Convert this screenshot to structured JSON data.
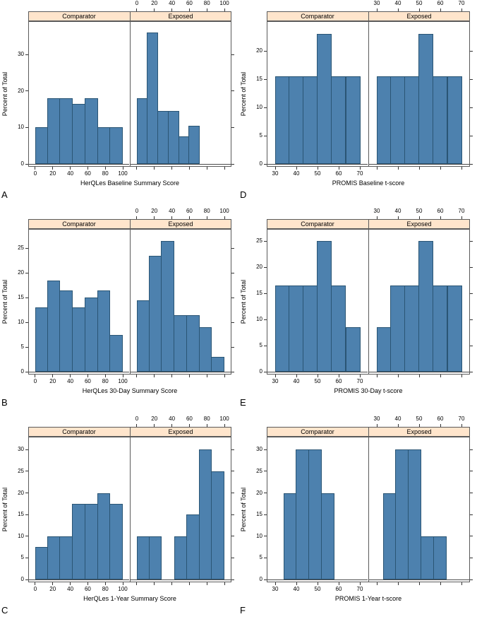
{
  "figure": {
    "background": "#ffffff",
    "bar_fill": "#4d81ae",
    "bar_stroke": "#2a5574",
    "strip_fill": "#ffe5cc",
    "panel_border": "#5a5a5a",
    "axis_color": "#333333",
    "baseline_color": "#4a4a4a"
  },
  "chart_data": [
    {
      "type": "bar",
      "letter": "A",
      "xlabel": "HerQLes Baseline Summary Score",
      "ylabel": "Percent of Total",
      "x_domain": [
        -8,
        108
      ],
      "xticks": [
        0,
        20,
        40,
        60,
        80,
        100
      ],
      "yticks": [
        0,
        10,
        20,
        30
      ],
      "ymax": 38,
      "legend_position": "strip",
      "grid": false,
      "groups": [
        {
          "name": "Comparator",
          "bin_start": 0,
          "bin_width": 14.3,
          "values": [
            10,
            18,
            18,
            16.5,
            18,
            10,
            10
          ]
        },
        {
          "name": "Exposed",
          "bin_start": 0,
          "bin_width": 12,
          "values": [
            18,
            36,
            14.5,
            14.5,
            7.5,
            10.5
          ]
        }
      ]
    },
    {
      "type": "bar",
      "letter": "B",
      "xlabel": "HerQLes 30-Day Summary Score",
      "ylabel": "Percent of Total",
      "x_domain": [
        -8,
        108
      ],
      "xticks": [
        0,
        20,
        40,
        60,
        80,
        100
      ],
      "yticks": [
        0,
        5,
        10,
        15,
        20,
        25
      ],
      "ymax": 28,
      "legend_position": "strip",
      "grid": false,
      "groups": [
        {
          "name": "Comparator",
          "bin_start": 0,
          "bin_width": 14.3,
          "values": [
            13,
            18.5,
            16.5,
            13,
            15,
            16.5,
            7.5
          ]
        },
        {
          "name": "Exposed",
          "bin_start": 0,
          "bin_width": 14.3,
          "values": [
            14.5,
            23.5,
            26.5,
            11.5,
            11.5,
            9,
            3
          ]
        }
      ]
    },
    {
      "type": "bar",
      "letter": "C",
      "xlabel": "HerQLes 1-Year Summary Score",
      "ylabel": "Percent of Total",
      "x_domain": [
        -8,
        108
      ],
      "xticks": [
        0,
        20,
        40,
        60,
        80,
        100
      ],
      "yticks": [
        0,
        5,
        10,
        15,
        20,
        25,
        30
      ],
      "ymax": 32,
      "legend_position": "strip",
      "grid": false,
      "groups": [
        {
          "name": "Comparator",
          "bin_start": 0,
          "bin_width": 14.3,
          "values": [
            7.5,
            10,
            10,
            17.5,
            17.5,
            20,
            17.5
          ]
        },
        {
          "name": "Exposed",
          "bin_start": 0,
          "bin_width": 14.3,
          "values": [
            10,
            10,
            null,
            10,
            15,
            30,
            25
          ]
        }
      ]
    },
    {
      "type": "bar",
      "letter": "D",
      "xlabel": "PROMIS Baseline t-score",
      "ylabel": "Percent of Total",
      "x_domain": [
        26,
        74
      ],
      "xticks": [
        30,
        40,
        50,
        60,
        70
      ],
      "yticks": [
        0,
        5,
        10,
        15,
        20
      ],
      "ymax": 24.5,
      "legend_position": "strip",
      "grid": false,
      "groups": [
        {
          "name": "Comparator",
          "bin_start": 30,
          "bin_width": 6.7,
          "values": [
            15.5,
            15.5,
            15.5,
            23,
            15.5,
            15.5
          ]
        },
        {
          "name": "Exposed",
          "bin_start": 30,
          "bin_width": 6.7,
          "values": [
            15.5,
            15.5,
            15.5,
            23,
            15.5,
            15.5
          ]
        }
      ]
    },
    {
      "type": "bar",
      "letter": "E",
      "xlabel": "PROMIS 30-Day t-score",
      "ylabel": "Percent of Total",
      "x_domain": [
        26,
        74
      ],
      "xticks": [
        30,
        40,
        50,
        60,
        70
      ],
      "yticks": [
        0,
        5,
        10,
        15,
        20,
        25
      ],
      "ymax": 26.5,
      "legend_position": "strip",
      "grid": false,
      "groups": [
        {
          "name": "Comparator",
          "bin_start": 30,
          "bin_width": 6.7,
          "values": [
            16.5,
            16.5,
            16.5,
            25,
            16.5,
            8.5
          ]
        },
        {
          "name": "Exposed",
          "bin_start": 30,
          "bin_width": 6.7,
          "values": [
            8.5,
            16.5,
            16.5,
            25,
            16.5,
            16.5
          ]
        }
      ]
    },
    {
      "type": "bar",
      "letter": "F",
      "xlabel": "PROMIS 1-Year t-score",
      "ylabel": "Percent of Total",
      "x_domain": [
        26,
        74
      ],
      "xticks": [
        30,
        40,
        50,
        60,
        70
      ],
      "yticks": [
        0,
        5,
        10,
        15,
        20,
        25,
        30
      ],
      "ymax": 32,
      "legend_position": "strip",
      "grid": false,
      "groups": [
        {
          "name": "Comparator",
          "bin_start": 34,
          "bin_width": 6,
          "values": [
            20,
            30,
            30,
            20
          ]
        },
        {
          "name": "Exposed",
          "bin_start": 33,
          "bin_width": 6,
          "values": [
            20,
            30,
            30,
            10,
            10
          ]
        }
      ]
    }
  ]
}
